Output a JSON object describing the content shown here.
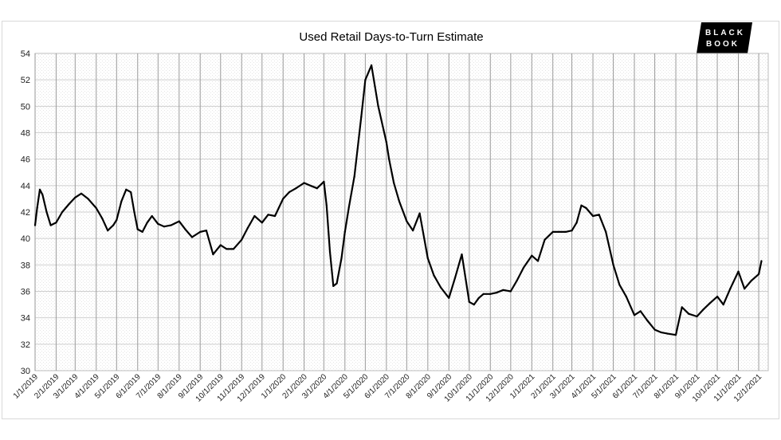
{
  "logo": {
    "line1": "BLACK",
    "line2": "BOOK"
  },
  "chart_data": {
    "type": "line",
    "title": "Used Retail Days-to-Turn Estimate",
    "xlabel": "",
    "ylabel": "",
    "ylim": [
      30,
      54
    ],
    "yticks": [
      30,
      32,
      34,
      36,
      38,
      40,
      42,
      44,
      46,
      48,
      50,
      52,
      54
    ],
    "grid": true,
    "legend": "none",
    "line_color": "#000000",
    "xticks": [
      "1/1/2019",
      "2/1/2019",
      "3/1/2019",
      "4/1/2019",
      "5/1/2019",
      "6/1/2019",
      "7/1/2019",
      "8/1/2019",
      "9/1/2019",
      "10/1/2019",
      "11/1/2019",
      "12/1/2019",
      "1/1/2020",
      "2/1/2020",
      "3/1/2020",
      "4/1/2020",
      "5/1/2020",
      "6/1/2020",
      "7/1/2020",
      "8/1/2020",
      "9/1/2020",
      "10/1/2020",
      "11/1/2020",
      "12/1/2020",
      "1/1/2021",
      "2/1/2021",
      "3/1/2021",
      "4/1/2021",
      "5/1/2021",
      "6/1/2021",
      "7/1/2021",
      "8/1/2021",
      "9/1/2021",
      "10/1/2021",
      "11/1/2021",
      "12/1/2021"
    ],
    "series": [
      {
        "x": [
          "1/1/2019",
          "1/4/2019",
          "1/8/2019",
          "1/12/2019",
          "1/18/2019",
          "1/24/2019",
          "2/1/2019",
          "2/10/2019",
          "2/20/2019",
          "3/1/2019",
          "3/10/2019",
          "3/20/2019",
          "4/1/2019",
          "4/10/2019",
          "4/18/2019",
          "4/26/2019",
          "5/1/2019",
          "5/8/2019",
          "5/15/2019",
          "5/22/2019",
          "5/27/2019",
          "6/1/2019",
          "6/8/2019",
          "6/15/2019",
          "6/22/2019",
          "7/1/2019",
          "7/10/2019",
          "7/20/2019",
          "8/1/2019",
          "8/10/2019",
          "8/20/2019",
          "9/1/2019",
          "9/10/2019",
          "9/20/2019",
          "10/1/2019",
          "10/10/2019",
          "10/20/2019",
          "11/1/2019",
          "11/10/2019",
          "11/20/2019",
          "12/1/2019",
          "12/10/2019",
          "12/20/2019",
          "1/1/2020",
          "1/10/2020",
          "1/20/2020",
          "2/1/2020",
          "2/10/2020",
          "2/20/2020",
          "3/1/2020",
          "3/5/2020",
          "3/10/2020",
          "3/15/2020",
          "3/20/2020",
          "3/27/2020",
          "4/1/2020",
          "4/7/2020",
          "4/15/2020",
          "4/25/2020",
          "5/1/2020",
          "5/10/2020",
          "5/20/2020",
          "5/28/2020",
          "6/1/2020",
          "6/5/2020",
          "6/12/2020",
          "6/20/2020",
          "7/1/2020",
          "7/10/2020",
          "7/20/2020",
          "8/1/2020",
          "8/10/2020",
          "8/20/2020",
          "9/1/2020",
          "9/10/2020",
          "9/20/2020",
          "10/1/2020",
          "10/8/2020",
          "10/15/2020",
          "10/22/2020",
          "11/1/2020",
          "11/10/2020",
          "11/20/2020",
          "12/1/2020",
          "12/10/2020",
          "12/20/2020",
          "1/1/2021",
          "1/10/2021",
          "1/20/2021",
          "2/1/2021",
          "2/10/2021",
          "2/20/2021",
          "3/1/2021",
          "3/8/2021",
          "3/15/2021",
          "3/22/2021",
          "4/1/2021",
          "4/10/2021",
          "4/20/2021",
          "5/1/2021",
          "5/10/2021",
          "5/20/2021",
          "6/1/2021",
          "6/10/2021",
          "6/20/2021",
          "7/1/2021",
          "7/10/2021",
          "7/20/2021",
          "8/1/2021",
          "8/10/2021",
          "8/20/2021",
          "9/1/2021",
          "9/10/2021",
          "9/20/2021",
          "10/1/2021",
          "10/10/2021",
          "10/20/2021",
          "11/1/2021",
          "11/10/2021",
          "11/20/2021",
          "12/1/2021",
          "12/5/2021"
        ],
        "values": [
          41.0,
          42.3,
          43.7,
          43.3,
          42.0,
          41.0,
          41.2,
          42.0,
          42.6,
          43.1,
          43.4,
          43.0,
          42.3,
          41.5,
          40.6,
          41.0,
          41.4,
          42.8,
          43.7,
          43.5,
          42.0,
          40.7,
          40.5,
          41.2,
          41.7,
          41.1,
          40.9,
          41.0,
          41.3,
          40.7,
          40.1,
          40.5,
          40.6,
          38.8,
          39.5,
          39.2,
          39.2,
          39.9,
          40.8,
          41.7,
          41.2,
          41.8,
          41.7,
          43.0,
          43.5,
          43.8,
          44.2,
          44.0,
          43.8,
          44.3,
          42.5,
          39.0,
          36.4,
          36.6,
          38.5,
          40.5,
          42.4,
          44.7,
          49.2,
          52.0,
          53.1,
          50.0,
          48.2,
          47.3,
          46.0,
          44.2,
          42.8,
          41.3,
          40.6,
          41.9,
          38.5,
          37.2,
          36.3,
          35.5,
          37.0,
          38.8,
          35.2,
          35.0,
          35.5,
          35.8,
          35.8,
          35.9,
          36.1,
          36.0,
          36.8,
          37.8,
          38.7,
          38.3,
          39.9,
          40.5,
          40.5,
          40.5,
          40.6,
          41.2,
          42.5,
          42.3,
          41.7,
          41.8,
          40.5,
          38.0,
          36.5,
          35.6,
          34.2,
          34.5,
          33.8,
          33.1,
          32.9,
          32.8,
          32.7,
          34.8,
          34.3,
          34.1,
          34.6,
          35.1,
          35.6,
          35.0,
          36.2,
          37.5,
          36.2,
          36.8,
          37.3,
          38.3
        ]
      }
    ]
  }
}
